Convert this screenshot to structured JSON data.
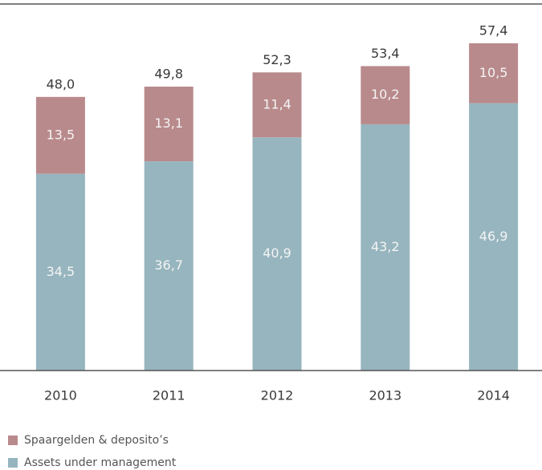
{
  "chart_data": {
    "type": "stacked-bar",
    "categories": [
      "2010",
      "2011",
      "2012",
      "2013",
      "2014"
    ],
    "series": [
      {
        "name": "Assets under management",
        "color": "#97b5be",
        "values": [
          34.5,
          36.7,
          40.9,
          43.2,
          46.9
        ],
        "value_labels": [
          "34,5",
          "36,7",
          "40,9",
          "43,2",
          "46,9"
        ]
      },
      {
        "name": "Spaargelden & deposito’s",
        "color": "#b98a8c",
        "values": [
          13.5,
          13.1,
          11.4,
          10.2,
          10.5
        ],
        "value_labels": [
          "13,5",
          "13,1",
          "11,4",
          "10,2",
          "10,5"
        ]
      }
    ],
    "totals": [
      48.0,
      49.8,
      52.3,
      53.4,
      57.4
    ],
    "total_labels": [
      "48,0",
      "49,8",
      "52,3",
      "53,4",
      "57,4"
    ]
  }
}
